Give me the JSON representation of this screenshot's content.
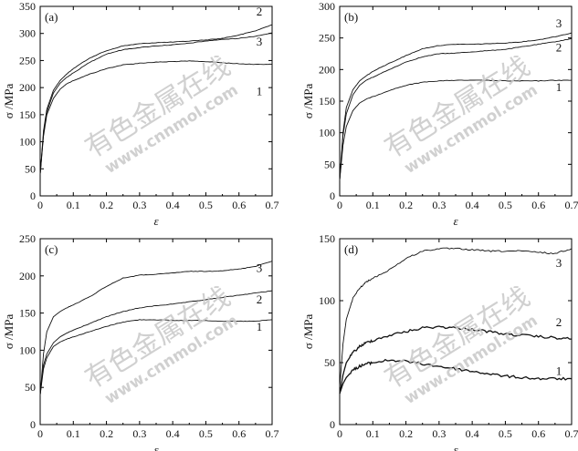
{
  "chart_data": [
    {
      "panel": "(a)",
      "type": "line",
      "xlabel": "ε",
      "ylabel": "σ /MPa",
      "xlim": [
        0,
        0.7
      ],
      "ylim": [
        0,
        350
      ],
      "xticks": [
        0,
        0.1,
        0.2,
        0.3,
        0.4,
        0.5,
        0.6,
        0.7
      ],
      "xtick_labels": [
        "0",
        "0.1",
        "0.2",
        "0.3",
        "0.4",
        "0.5",
        "0.6",
        "0.7"
      ],
      "yticks": [
        0,
        50,
        100,
        150,
        200,
        250,
        300,
        350
      ],
      "ytick_labels": [
        "0",
        "50",
        "100",
        "150",
        "200",
        "250",
        "300",
        "350"
      ],
      "series": [
        {
          "name": "1",
          "x": [
            0,
            0.01,
            0.02,
            0.04,
            0.06,
            0.08,
            0.1,
            0.15,
            0.2,
            0.25,
            0.3,
            0.35,
            0.4,
            0.45,
            0.5,
            0.55,
            0.6,
            0.65,
            0.7
          ],
          "y": [
            40,
            110,
            150,
            180,
            197,
            207,
            213,
            225,
            235,
            242,
            245,
            247,
            248,
            249,
            248,
            246,
            244,
            243,
            243
          ]
        },
        {
          "name": "2",
          "x": [
            0,
            0.01,
            0.02,
            0.04,
            0.06,
            0.08,
            0.1,
            0.15,
            0.2,
            0.25,
            0.3,
            0.35,
            0.4,
            0.45,
            0.5,
            0.55,
            0.6,
            0.65,
            0.7
          ],
          "y": [
            40,
            120,
            160,
            195,
            213,
            225,
            235,
            255,
            268,
            277,
            281,
            283,
            284,
            286,
            288,
            291,
            297,
            305,
            316
          ]
        },
        {
          "name": "3",
          "x": [
            0,
            0.01,
            0.02,
            0.04,
            0.06,
            0.08,
            0.1,
            0.15,
            0.2,
            0.25,
            0.3,
            0.35,
            0.4,
            0.45,
            0.5,
            0.55,
            0.6,
            0.65,
            0.7
          ],
          "y": [
            40,
            115,
            155,
            190,
            208,
            219,
            227,
            247,
            262,
            270,
            274,
            277,
            279,
            282,
            286,
            289,
            291,
            295,
            301
          ]
        }
      ],
      "annotations": [
        "(a)",
        "1",
        "2",
        "3"
      ]
    },
    {
      "panel": "(b)",
      "type": "line",
      "xlabel": "ε",
      "ylabel": "σ /MPa",
      "xlim": [
        0,
        0.7
      ],
      "ylim": [
        0,
        300
      ],
      "xticks": [
        0,
        0.1,
        0.2,
        0.3,
        0.4,
        0.5,
        0.6,
        0.7
      ],
      "xtick_labels": [
        "0",
        "0.1",
        "0.2",
        "0.3",
        "0.4",
        "0.5",
        "0.6",
        "0.7"
      ],
      "yticks": [
        0,
        50,
        100,
        150,
        200,
        250,
        300
      ],
      "ytick_labels": [
        "0",
        "50",
        "100",
        "150",
        "200",
        "250",
        "300"
      ],
      "series": [
        {
          "name": "1",
          "x": [
            0,
            0.01,
            0.02,
            0.04,
            0.06,
            0.08,
            0.1,
            0.15,
            0.2,
            0.25,
            0.3,
            0.35,
            0.4,
            0.45,
            0.5,
            0.55,
            0.6,
            0.65,
            0.7
          ],
          "y": [
            25,
            80,
            110,
            135,
            147,
            153,
            157,
            167,
            175,
            180,
            182,
            183,
            183,
            183,
            182,
            182,
            182,
            183,
            183
          ]
        },
        {
          "name": "2",
          "x": [
            0,
            0.01,
            0.02,
            0.04,
            0.06,
            0.08,
            0.1,
            0.15,
            0.2,
            0.25,
            0.3,
            0.35,
            0.4,
            0.45,
            0.5,
            0.55,
            0.6,
            0.65,
            0.7
          ],
          "y": [
            25,
            95,
            130,
            160,
            175,
            183,
            188,
            200,
            212,
            220,
            225,
            226,
            228,
            230,
            232,
            236,
            240,
            244,
            249
          ]
        },
        {
          "name": "3",
          "x": [
            0,
            0.01,
            0.02,
            0.04,
            0.06,
            0.08,
            0.1,
            0.15,
            0.2,
            0.25,
            0.3,
            0.35,
            0.4,
            0.45,
            0.5,
            0.55,
            0.6,
            0.65,
            0.7
          ],
          "y": [
            25,
            100,
            140,
            168,
            182,
            190,
            197,
            210,
            222,
            233,
            238,
            240,
            240,
            241,
            242,
            244,
            247,
            252,
            258
          ]
        }
      ],
      "annotations": [
        "(b)",
        "1",
        "2",
        "3"
      ]
    },
    {
      "panel": "(c)",
      "type": "line",
      "xlabel": "ε",
      "ylabel": "σ /MPa",
      "xlim": [
        0,
        0.7
      ],
      "ylim": [
        0,
        250
      ],
      "xticks": [
        0,
        0.1,
        0.2,
        0.3,
        0.4,
        0.5,
        0.6,
        0.7
      ],
      "xtick_labels": [
        "0",
        "0.1",
        "0.2",
        "0.3",
        "0.4",
        "0.5",
        "0.6",
        "0.7"
      ],
      "yticks": [
        0,
        50,
        100,
        150,
        200,
        250
      ],
      "ytick_labels": [
        "0",
        "50",
        "100",
        "150",
        "200",
        "250"
      ],
      "series": [
        {
          "name": "1",
          "x": [
            0,
            0.01,
            0.02,
            0.04,
            0.06,
            0.08,
            0.1,
            0.15,
            0.2,
            0.25,
            0.3,
            0.35,
            0.4,
            0.45,
            0.5,
            0.55,
            0.6,
            0.65,
            0.7
          ],
          "y": [
            40,
            75,
            90,
            105,
            111,
            115,
            118,
            125,
            132,
            138,
            141,
            141,
            140,
            140,
            140,
            139,
            139,
            139,
            141
          ]
        },
        {
          "name": "2",
          "x": [
            0,
            0.01,
            0.02,
            0.04,
            0.06,
            0.08,
            0.1,
            0.15,
            0.2,
            0.25,
            0.3,
            0.35,
            0.4,
            0.45,
            0.5,
            0.55,
            0.6,
            0.65,
            0.7
          ],
          "y": [
            40,
            80,
            95,
            110,
            118,
            123,
            127,
            136,
            145,
            152,
            157,
            160,
            162,
            165,
            168,
            171,
            174,
            177,
            180
          ]
        },
        {
          "name": "3",
          "x": [
            0,
            0.01,
            0.02,
            0.04,
            0.06,
            0.08,
            0.1,
            0.15,
            0.2,
            0.25,
            0.3,
            0.35,
            0.4,
            0.45,
            0.5,
            0.55,
            0.6,
            0.65,
            0.7
          ],
          "y": [
            40,
            95,
            125,
            145,
            152,
            157,
            161,
            172,
            186,
            197,
            201,
            202,
            204,
            206,
            206,
            207,
            209,
            213,
            220
          ]
        }
      ],
      "annotations": [
        "(c)",
        "1",
        "2",
        "3"
      ]
    },
    {
      "panel": "(d)",
      "type": "line",
      "xlabel": "ε",
      "ylabel": "σ /MPa",
      "xlim": [
        0,
        0.7
      ],
      "ylim": [
        0,
        150
      ],
      "xticks": [
        0,
        0.1,
        0.2,
        0.3,
        0.4,
        0.5,
        0.6,
        0.7
      ],
      "xtick_labels": [
        "0",
        "0.1",
        "0.2",
        "0.3",
        "0.4",
        "0.5",
        "0.6",
        "0.7"
      ],
      "yticks": [
        0,
        50,
        100,
        150
      ],
      "ytick_labels": [
        "0",
        "50",
        "100",
        "150"
      ],
      "series": [
        {
          "name": "1",
          "x": [
            0,
            0.01,
            0.02,
            0.04,
            0.06,
            0.08,
            0.1,
            0.15,
            0.2,
            0.25,
            0.3,
            0.35,
            0.4,
            0.45,
            0.5,
            0.55,
            0.6,
            0.65,
            0.7
          ],
          "y": [
            25,
            33,
            38,
            44,
            47,
            49,
            50,
            52,
            51,
            49,
            47,
            45,
            43,
            41,
            39,
            38,
            37,
            37,
            37
          ]
        },
        {
          "name": "2",
          "x": [
            0,
            0.01,
            0.02,
            0.04,
            0.06,
            0.08,
            0.1,
            0.15,
            0.2,
            0.25,
            0.3,
            0.35,
            0.4,
            0.45,
            0.5,
            0.55,
            0.6,
            0.65,
            0.7
          ],
          "y": [
            25,
            40,
            50,
            58,
            63,
            66,
            68,
            72,
            75,
            78,
            79,
            78,
            77,
            75,
            73,
            72,
            71,
            70,
            69
          ]
        },
        {
          "name": "3",
          "x": [
            0,
            0.01,
            0.02,
            0.04,
            0.06,
            0.08,
            0.1,
            0.15,
            0.2,
            0.25,
            0.3,
            0.35,
            0.4,
            0.45,
            0.5,
            0.55,
            0.6,
            0.65,
            0.7
          ],
          "y": [
            30,
            65,
            85,
            102,
            110,
            115,
            118,
            125,
            134,
            140,
            142,
            142,
            141,
            140,
            140,
            140,
            139,
            138,
            142
          ]
        }
      ],
      "annotations": [
        "(d)",
        "1",
        "2",
        "3"
      ]
    }
  ],
  "watermark": {
    "line1": "有色金属在线",
    "line2": "www.cnnmol.com"
  }
}
